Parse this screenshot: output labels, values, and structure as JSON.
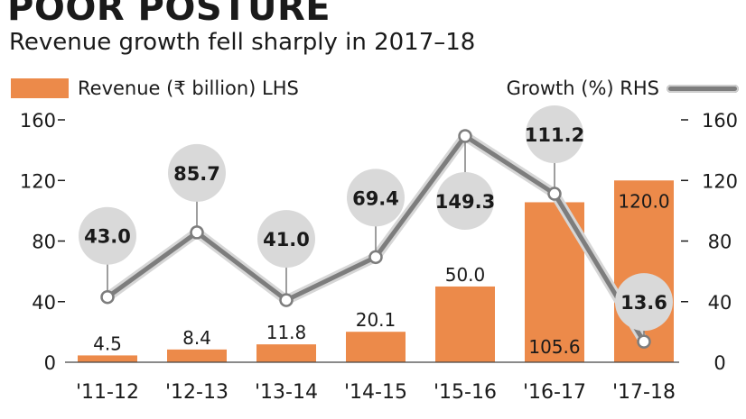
{
  "header": {
    "title": "POOR POSTURE",
    "subtitle": "Revenue growth fell sharply in 2017–18"
  },
  "legend": {
    "bar_label": "Revenue (₹ billion) LHS",
    "line_label": "Growth (%) RHS"
  },
  "colors": {
    "bar": "#ec8a4a",
    "line": "#7d7d7d",
    "line_outline": "#d6d6d6",
    "bubble": "#d9d9d9",
    "text": "#1a1a1a"
  },
  "chart_data": {
    "type": "bar+line",
    "title": "POOR POSTURE",
    "subtitle": "Revenue growth fell sharply in 2017–18",
    "categories": [
      "'11-12",
      "'12-13",
      "'13-14",
      "'14-15",
      "'15-16",
      "'16-17",
      "'17-18"
    ],
    "series": [
      {
        "name": "Revenue (₹ billion) LHS",
        "kind": "bar",
        "axis": "left",
        "values": [
          4.5,
          8.4,
          11.8,
          20.1,
          50.0,
          105.6,
          120.0
        ],
        "labels": [
          "4.5",
          "8.4",
          "11.8",
          "20.1",
          "50.0",
          "105.6",
          "120.0"
        ]
      },
      {
        "name": "Growth (%) RHS",
        "kind": "line",
        "axis": "right",
        "values": [
          43.0,
          85.7,
          41.0,
          69.4,
          149.3,
          111.2,
          13.6
        ],
        "labels": [
          "43.0",
          "85.7",
          "41.0",
          "69.4",
          "149.3",
          "111.2",
          "13.6"
        ]
      }
    ],
    "left_axis": {
      "ylim": [
        0,
        160
      ],
      "ticks": [
        0,
        40,
        80,
        120,
        160
      ],
      "tick_labels": [
        "0",
        "40",
        "80",
        "120",
        "160"
      ]
    },
    "right_axis": {
      "ylim": [
        0,
        160
      ],
      "ticks": [
        0,
        40,
        80,
        120,
        160
      ],
      "tick_labels": [
        "0",
        "40",
        "80",
        "120",
        "160"
      ]
    },
    "grid": false,
    "legend_position": "top"
  }
}
